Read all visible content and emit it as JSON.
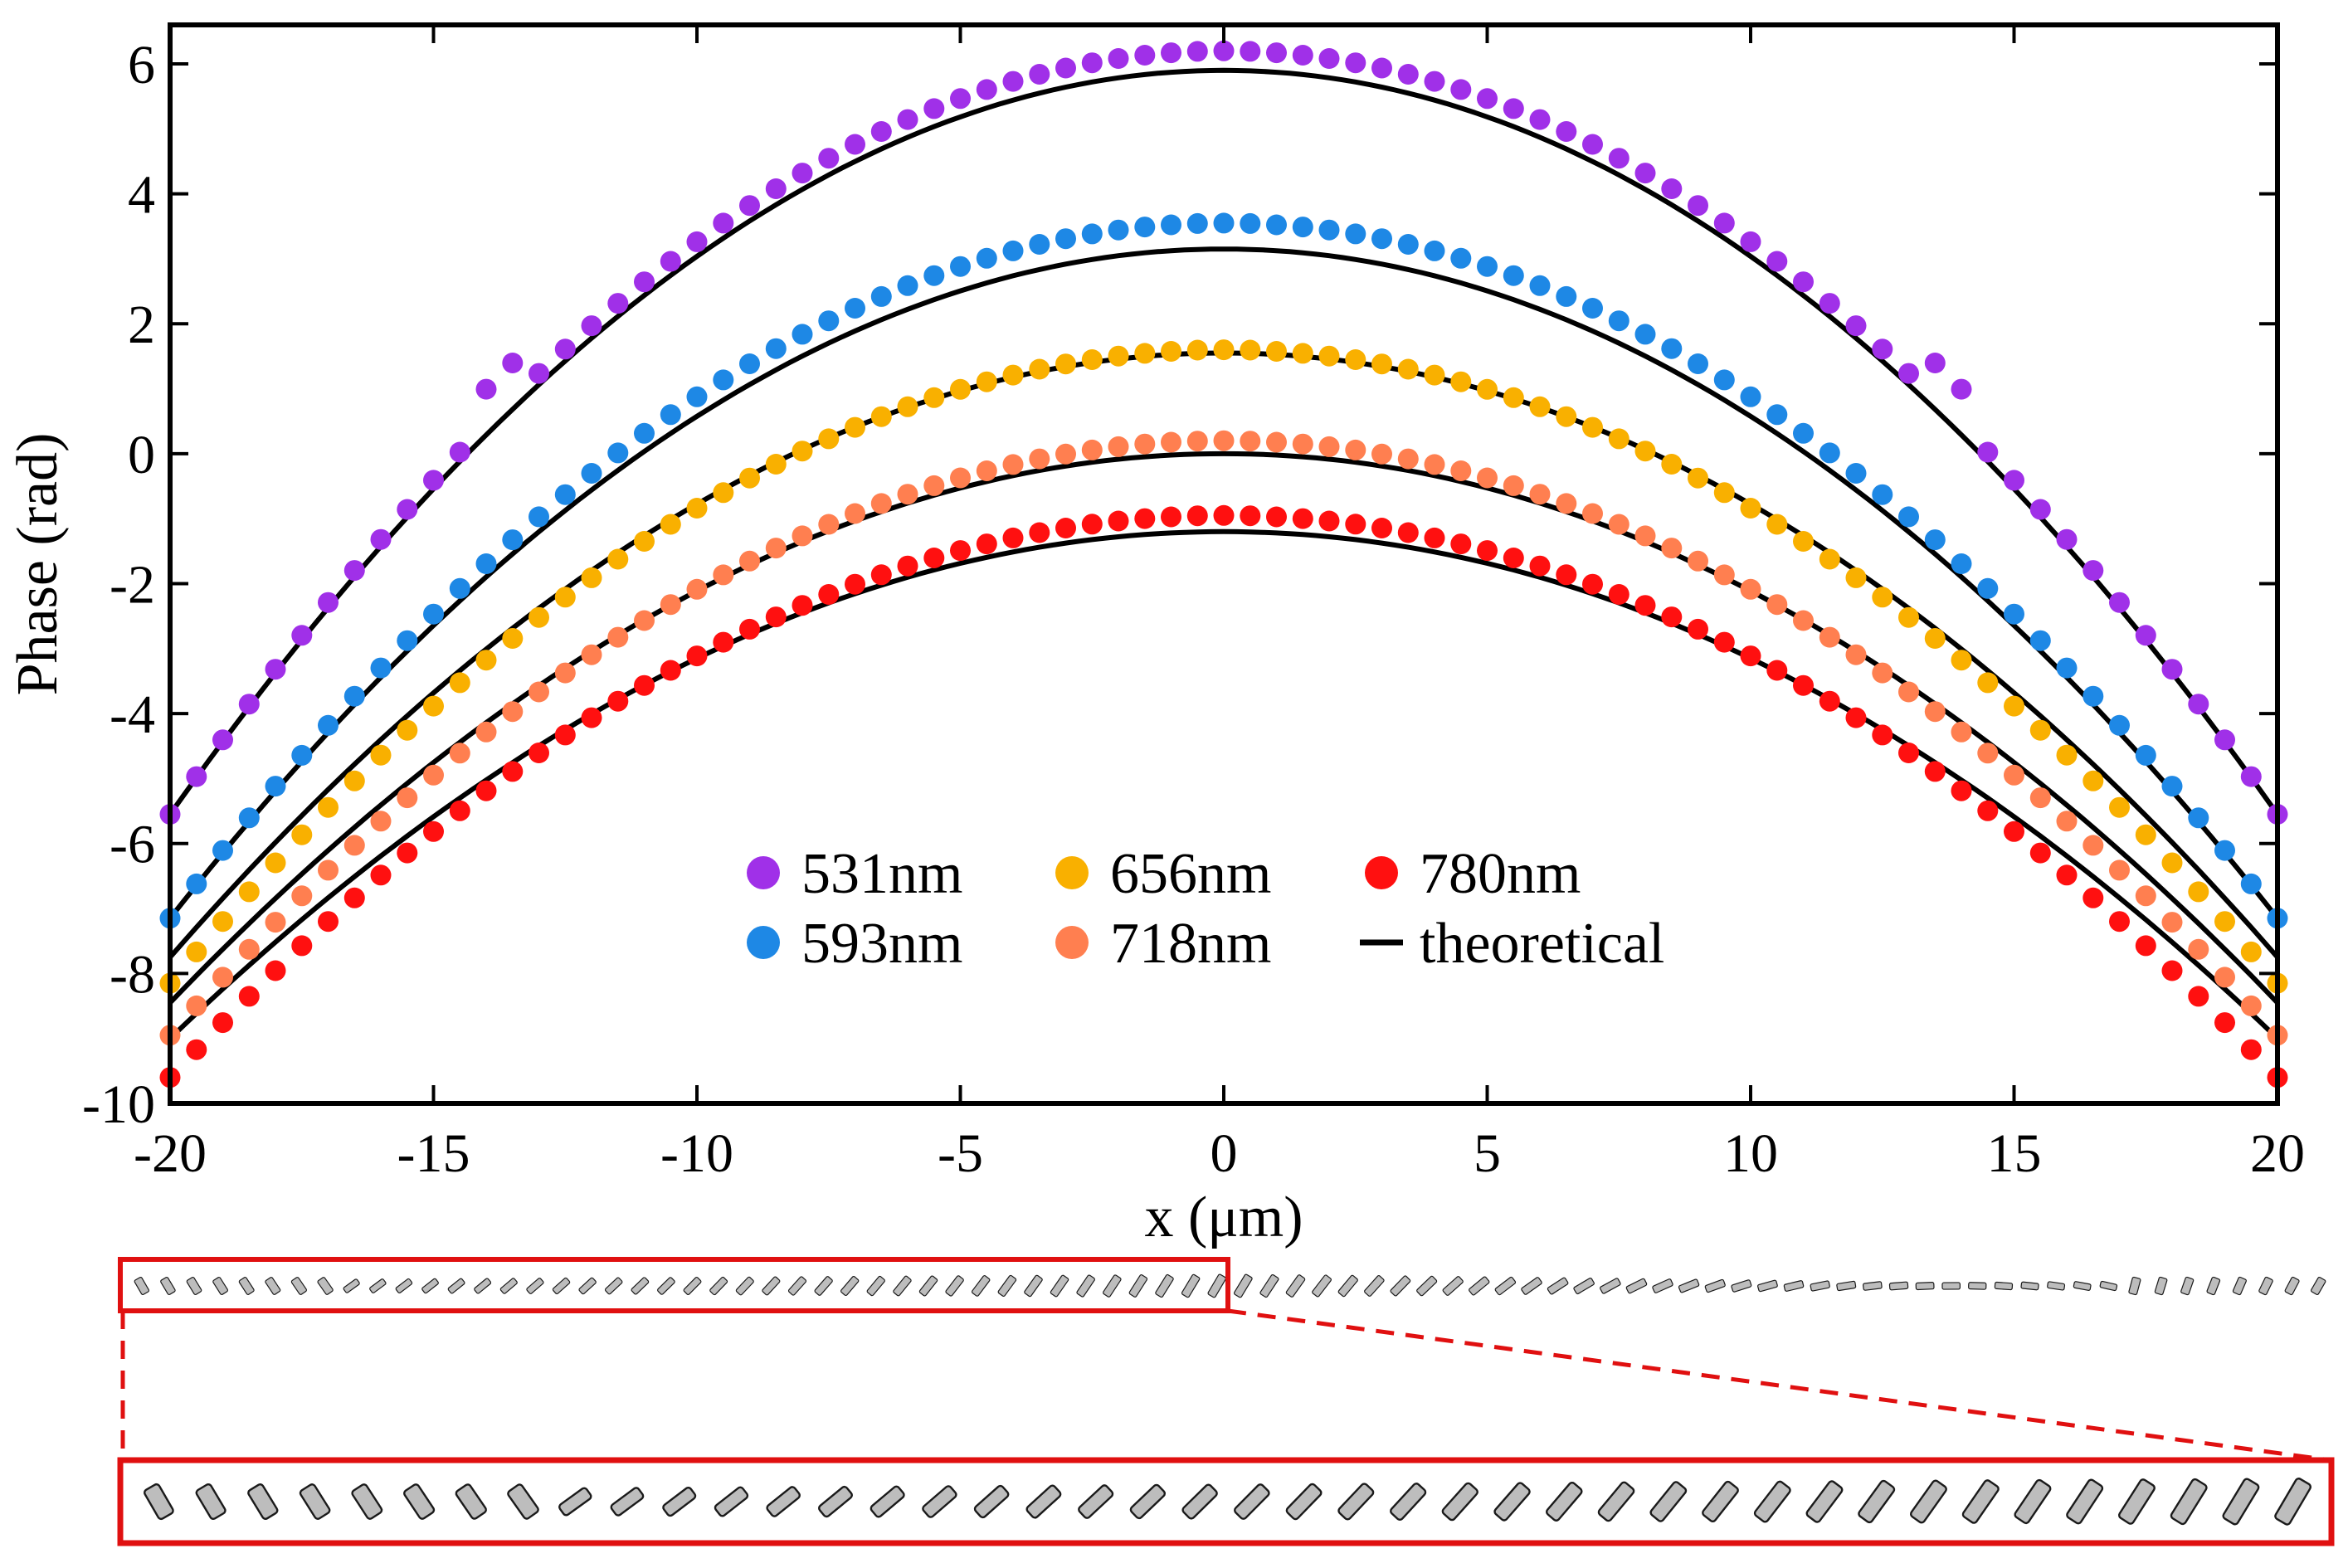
{
  "chart_data": {
    "type": "scatter",
    "title": "",
    "xlabel": "x (μm)",
    "ylabel": "Phase (rad)",
    "xlim": [
      -20,
      20
    ],
    "ylim": [
      -10,
      6.6
    ],
    "xticks": [
      -20,
      -15,
      -10,
      -5,
      0,
      5,
      10,
      15,
      20
    ],
    "xtick_labels": [
      "-20",
      "-15",
      "-10",
      "-5",
      "0",
      "5",
      "10",
      "15",
      "20"
    ],
    "yticks": [
      -10,
      -8,
      -6,
      -4,
      -2,
      0,
      2,
      4,
      6
    ],
    "ytick_labels": [
      "-10",
      "-8",
      "-6",
      "-4",
      "-2",
      "0",
      "2",
      "4",
      "6"
    ],
    "grid": false,
    "legend_position": "bottom-center",
    "x_step": 0.5,
    "x_range": [
      -20,
      20
    ],
    "series": [
      {
        "name": "531nm",
        "color": "#a030e8",
        "peak": 6.2,
        "edge": -5.55,
        "theory_peak": 5.9,
        "theory_edge": -5.55,
        "anomaly": {
          "x": 13.75,
          "delta": 0.55
        }
      },
      {
        "name": "593nm",
        "color": "#1e88e5",
        "peak": 3.55,
        "edge": -7.15,
        "theory_peak": 3.15,
        "theory_edge": -7.15
      },
      {
        "name": "656nm",
        "color": "#f9b000",
        "peak": 1.6,
        "edge": -8.15,
        "theory_peak": 1.55,
        "theory_edge": -7.75
      },
      {
        "name": "718nm",
        "color": "#ff7f50",
        "peak": 0.2,
        "edge": -8.95,
        "theory_peak": 0.0,
        "theory_edge": -8.45
      },
      {
        "name": "780nm",
        "color": "#ff1010",
        "peak": -0.95,
        "edge": -9.6,
        "theory_peak": -1.2,
        "theory_edge": -9.0
      }
    ],
    "theory": {
      "name": "theoretical",
      "color": "#000000"
    },
    "legend_rows": [
      [
        "531nm",
        "656nm",
        "780nm"
      ],
      [
        "593nm",
        "718nm",
        "theoretical"
      ]
    ]
  },
  "metasurface": {
    "frame_color": "#e01010",
    "pillar_fill": "#bdbdbd",
    "pillar_stroke": "#1a1a1a",
    "strip_count": 84,
    "zoom_count": 42
  }
}
